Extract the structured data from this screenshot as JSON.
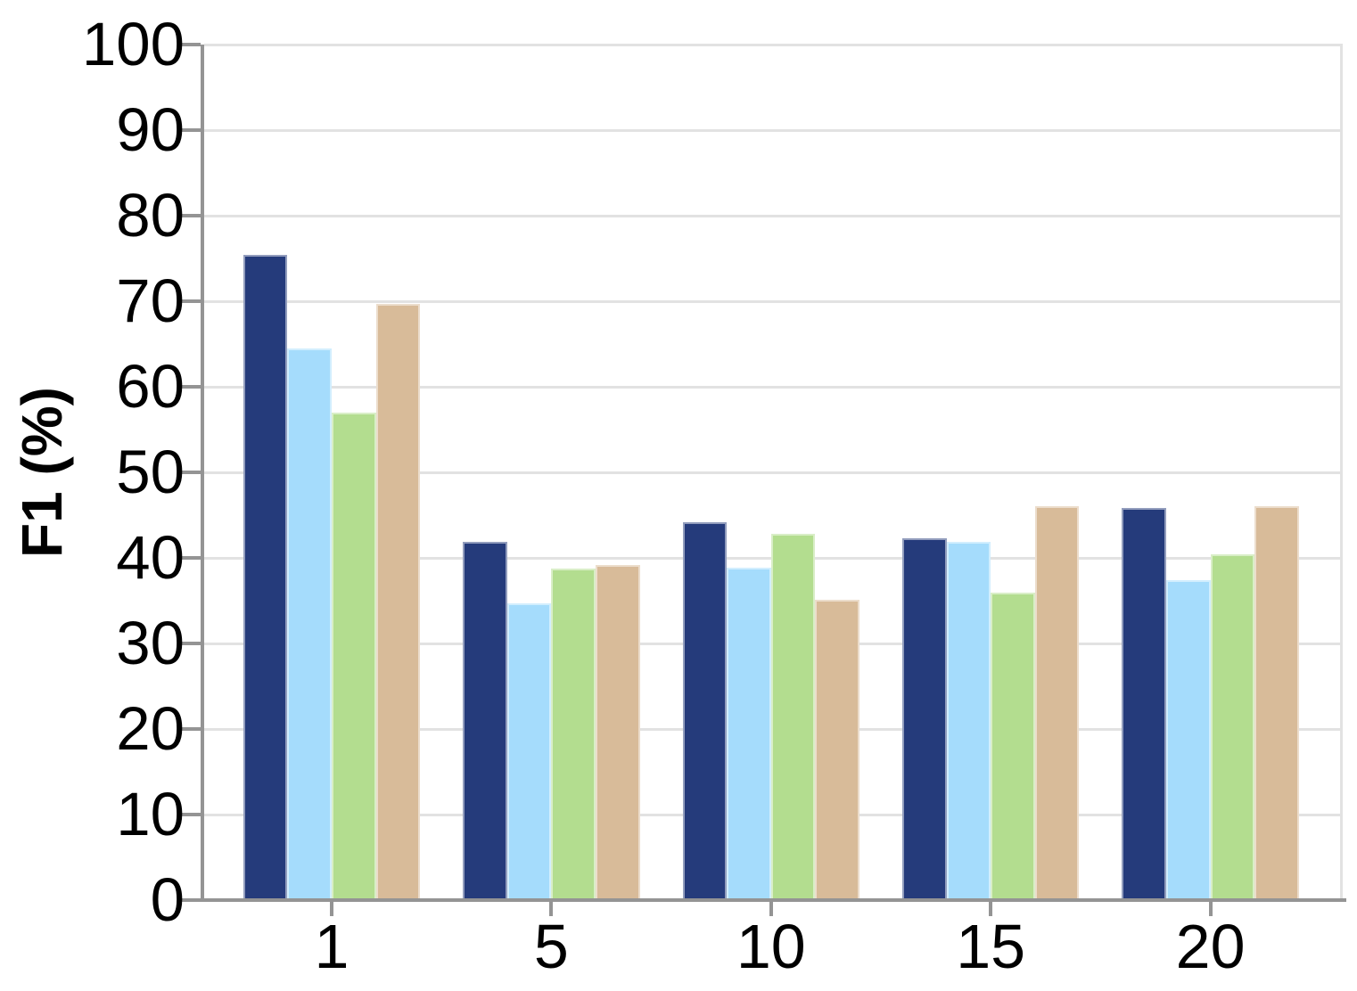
{
  "figure": {
    "background": "#FFFFFF",
    "axis_color": "#949494",
    "grid_color": "#E2E2E2",
    "text_color": "#000000"
  },
  "chart_data": {
    "type": "bar",
    "title": "",
    "xlabel": "",
    "ylabel": "F1 (%)",
    "categories": [
      "1",
      "5",
      "10",
      "15",
      "20"
    ],
    "series": [
      {
        "name": "navy",
        "color": "#253B7B",
        "values": [
          75.4,
          41.9,
          44.2,
          42.3,
          45.8
        ]
      },
      {
        "name": "light-blue",
        "color": "#A5DCFC",
        "values": [
          64.5,
          34.7,
          38.9,
          41.9,
          37.4
        ]
      },
      {
        "name": "green",
        "color": "#B3DD8F",
        "values": [
          57.0,
          38.8,
          42.8,
          35.9,
          40.4
        ]
      },
      {
        "name": "tan",
        "color": "#D8BB99",
        "values": [
          69.7,
          39.2,
          35.1,
          46.0,
          46.0
        ]
      }
    ],
    "ylim": [
      0,
      100
    ],
    "yticks": [
      0,
      10,
      20,
      30,
      40,
      50,
      60,
      70,
      80,
      90,
      100
    ],
    "grid": true,
    "legend": "none"
  }
}
